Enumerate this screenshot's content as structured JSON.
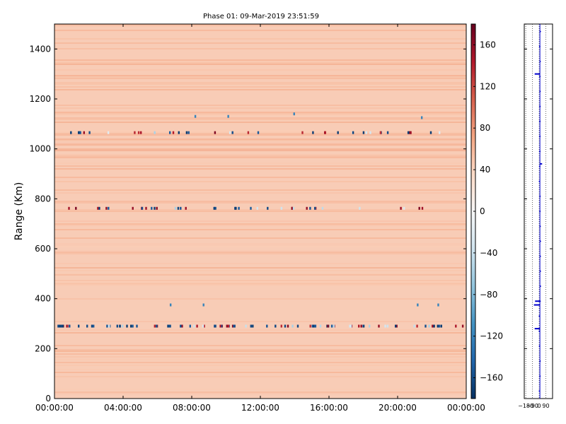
{
  "chart_data": [
    {
      "type": "heatmap",
      "title": "Phase 01: 09-Mar-2019 23:51:59",
      "ylabel": "Range (Km)",
      "xlabel": "",
      "x_ticks": [
        "00:00:00",
        "04:00:00",
        "08:00:00",
        "12:00:00",
        "16:00:00",
        "20:00:00",
        "00:00:00"
      ],
      "x_range_hours": [
        0,
        24
      ],
      "y_ticks": [
        0,
        200,
        400,
        600,
        800,
        1000,
        1200,
        1400
      ],
      "ylim": [
        0,
        1500
      ],
      "background_value": 60,
      "colorbar": {
        "colormap": "RdBu_r",
        "range": [
          -180,
          180
        ],
        "ticks": [
          160,
          120,
          80,
          40,
          0,
          -40,
          -80,
          -120,
          -160
        ],
        "tick_labels": [
          "160",
          "120",
          "80",
          "40",
          "0",
          "−40",
          "−80",
          "−120",
          "−160"
        ]
      },
      "anomaly_bands": [
        {
          "range_km": 1065,
          "description": "scattered phase outliers"
        },
        {
          "range_km": 762,
          "description": "scattered phase outliers"
        },
        {
          "range_km": 290,
          "description": "dense phase outliers"
        }
      ]
    },
    {
      "type": "line",
      "x_ticks": [
        -180,
        -90,
        0,
        90
      ],
      "x_tick_labels": [
        "−180",
        "−90",
        "0",
        "90"
      ],
      "xlim": [
        -200,
        180
      ],
      "ylim": [
        0,
        1500
      ],
      "profile_x": 10,
      "spikes": [
        {
          "range_km": 1300,
          "from": -60,
          "to": 10
        },
        {
          "range_km": 940,
          "from": 10,
          "to": 40
        },
        {
          "range_km": 390,
          "from": -55,
          "to": 10
        },
        {
          "range_km": 375,
          "from": -70,
          "to": 10
        },
        {
          "range_km": 280,
          "from": -60,
          "to": 10
        }
      ]
    }
  ]
}
